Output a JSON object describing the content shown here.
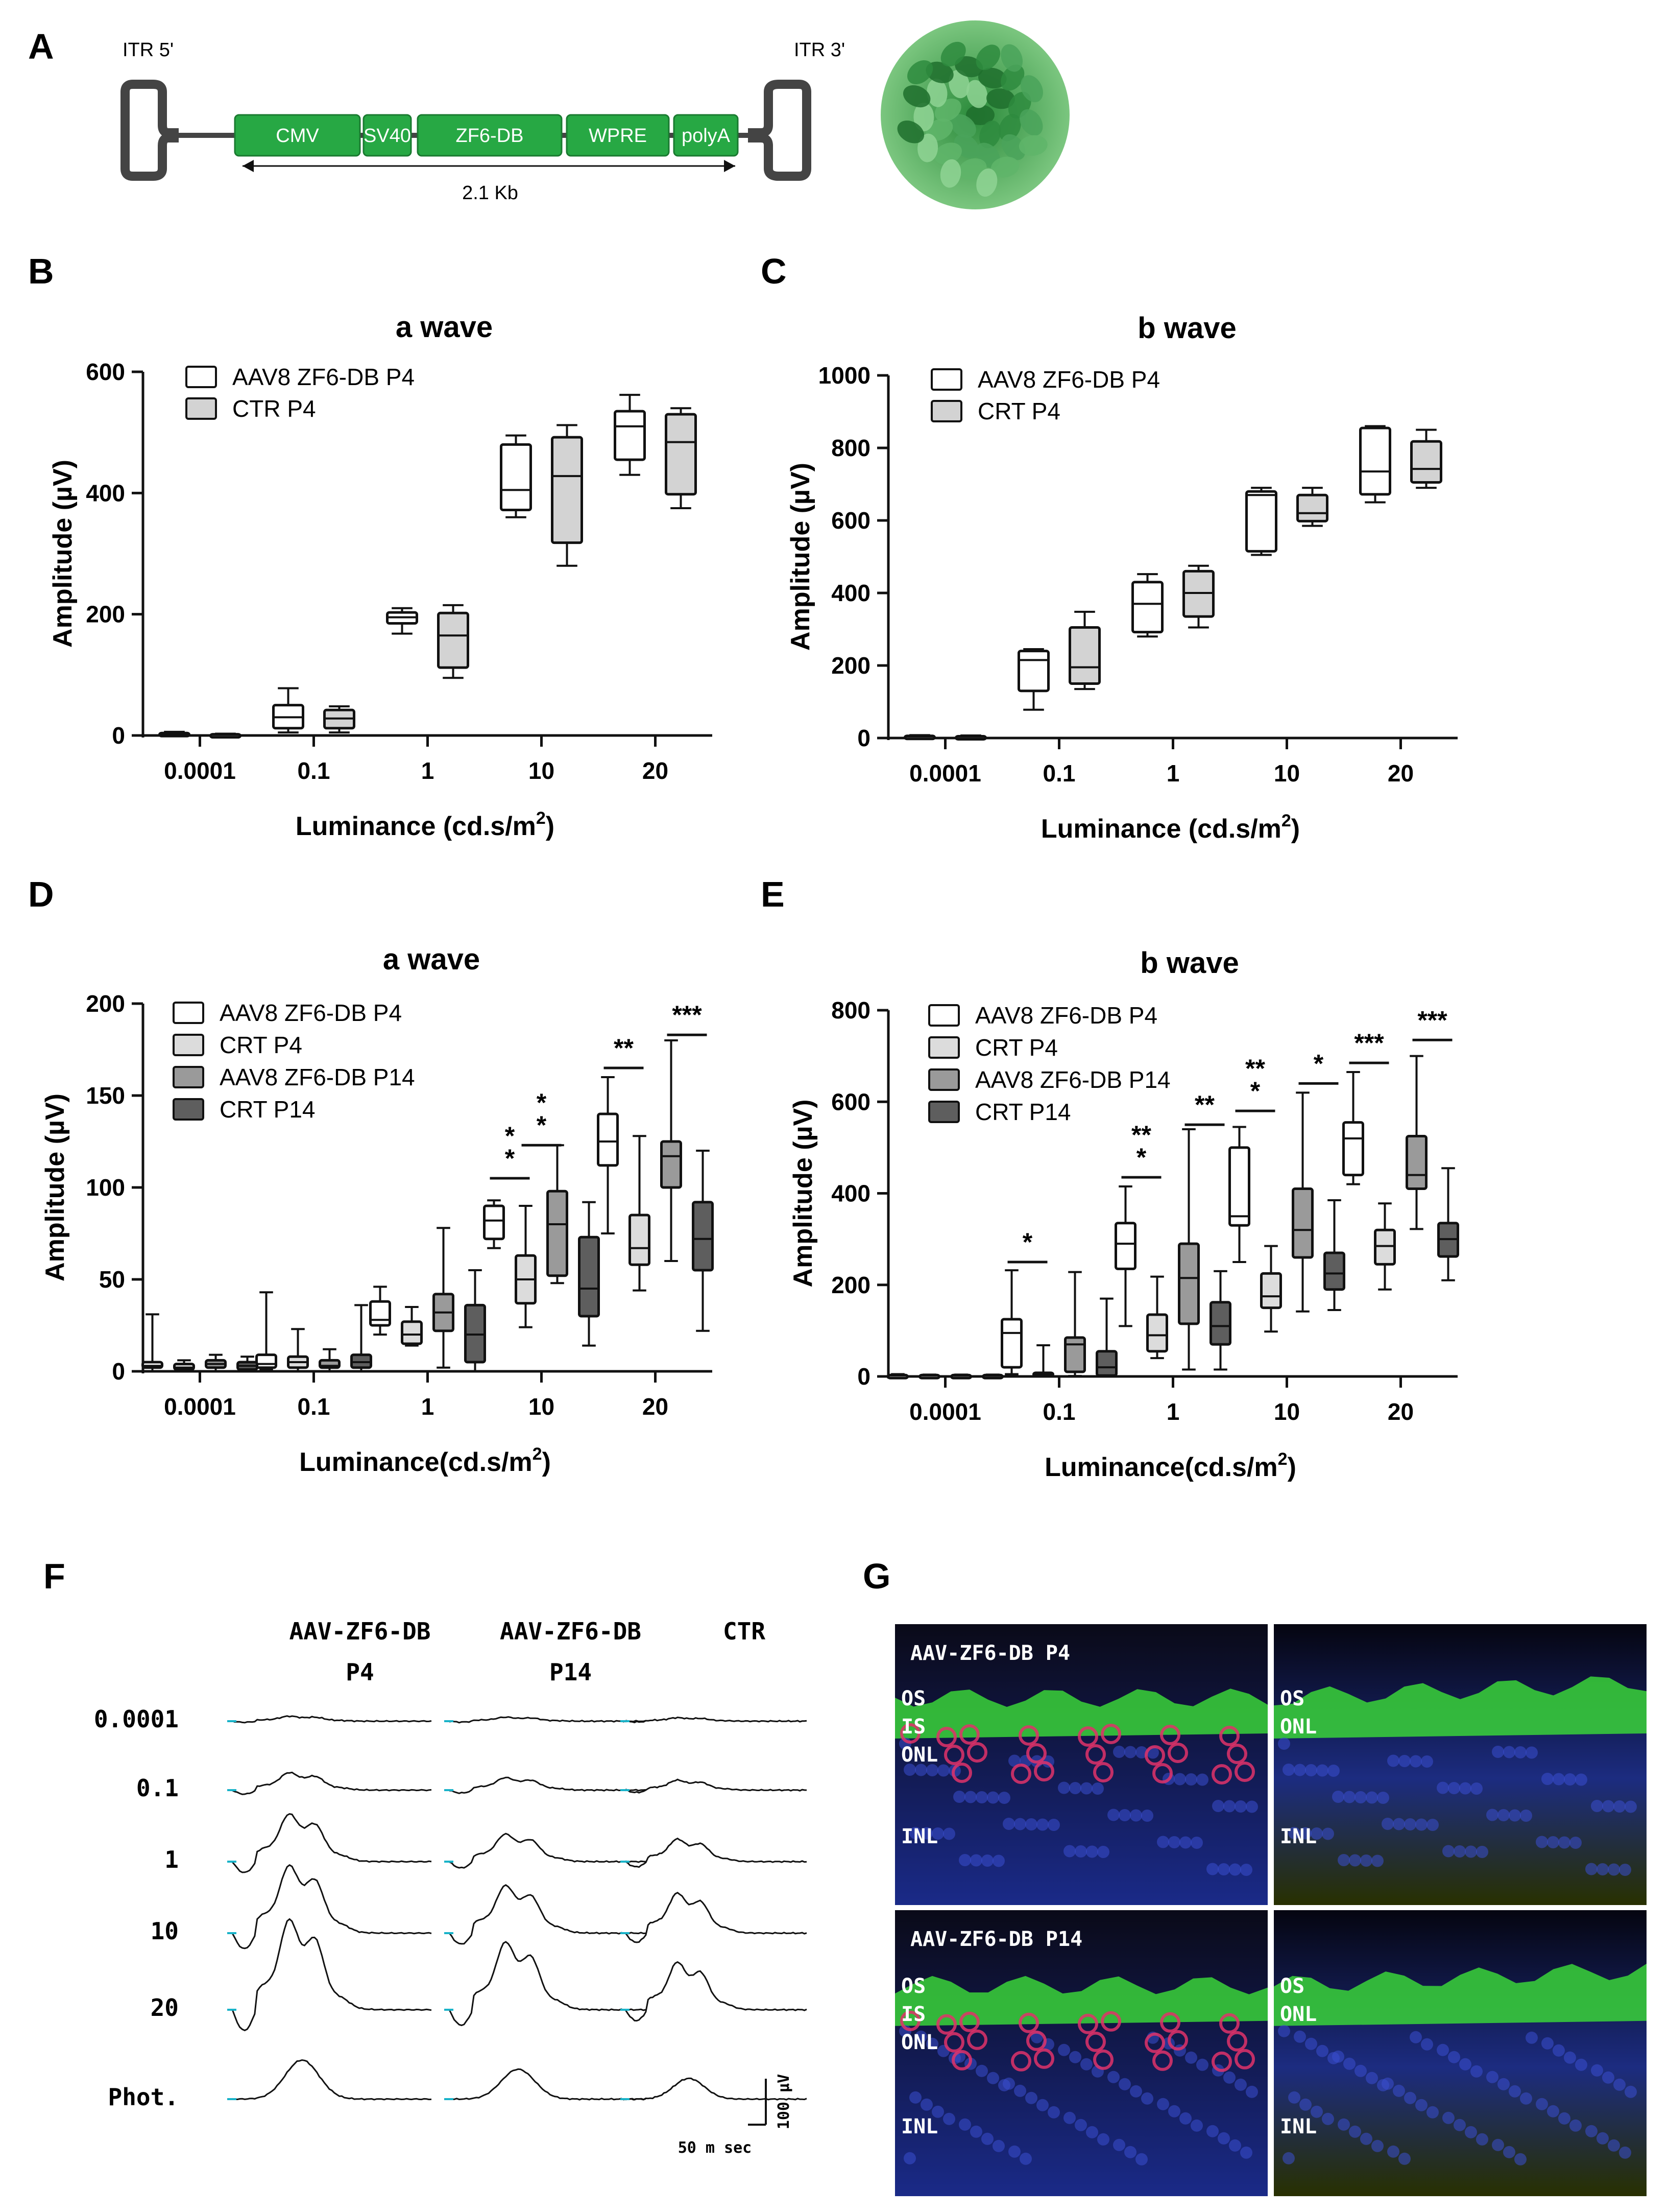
{
  "panel_labels": {
    "A": "A",
    "B": "B",
    "C": "C",
    "D": "D",
    "E": "E",
    "F": "F",
    "G": "G"
  },
  "construct": {
    "itr5": "ITR 5'",
    "itr3": "ITR 3'",
    "elements": [
      "CMV",
      "SV40",
      "ZF6-DB",
      "WPRE",
      "polyA"
    ],
    "size_label": "2.1 Kb",
    "colors": {
      "element": "#27a844",
      "element_stroke": "#1a7a30",
      "itr": "#444444"
    }
  },
  "chart_data": [
    {
      "id": "B",
      "type": "box",
      "title": "a wave",
      "xlabel": "Luminance (cd.s/m",
      "xlabel_sup": "2",
      "xlabel_end": ")",
      "ylabel": "Amplitude (µV)",
      "categories": [
        "0.0001",
        "0.1",
        "1",
        "10",
        "20"
      ],
      "ylim": [
        0,
        600
      ],
      "yticks": [
        "0",
        "200",
        "400",
        "600"
      ],
      "series": [
        {
          "name": "AAV8 ZF6-DB P4",
          "color": "#ffffff",
          "boxes": [
            {
              "min": 0,
              "q1": 1,
              "med": 2,
              "q3": 4,
              "max": 6
            },
            {
              "min": 5,
              "q1": 12,
              "med": 30,
              "q3": 50,
              "max": 78
            },
            {
              "min": 168,
              "q1": 185,
              "med": 195,
              "q3": 203,
              "max": 210
            },
            {
              "min": 360,
              "q1": 372,
              "med": 405,
              "q3": 480,
              "max": 495
            },
            {
              "min": 430,
              "q1": 455,
              "med": 510,
              "q3": 535,
              "max": 562
            }
          ]
        },
        {
          "name": "CTR P4",
          "color": "#d3d3d3",
          "boxes": [
            {
              "min": 0,
              "q1": 1,
              "med": 1,
              "q3": 2,
              "max": 3
            },
            {
              "min": 5,
              "q1": 12,
              "med": 28,
              "q3": 42,
              "max": 48
            },
            {
              "min": 95,
              "q1": 112,
              "med": 165,
              "q3": 202,
              "max": 215
            },
            {
              "min": 280,
              "q1": 318,
              "med": 428,
              "q3": 492,
              "max": 512
            },
            {
              "min": 375,
              "q1": 398,
              "med": 484,
              "q3": 530,
              "max": 540
            }
          ]
        }
      ],
      "significance": []
    },
    {
      "id": "C",
      "type": "box",
      "title": "b wave",
      "xlabel": "Luminance (cd.s/m",
      "xlabel_sup": "2",
      "xlabel_end": ")",
      "ylabel": "Amplitude (µV)",
      "categories": [
        "0.0001",
        "0.1",
        "1",
        "10",
        "20"
      ],
      "ylim": [
        0,
        1000
      ],
      "yticks": [
        "0",
        "200",
        "400",
        "600",
        "800",
        "1000"
      ],
      "series": [
        {
          "name": "AAV8 ZF6-DB P4",
          "color": "#ffffff",
          "boxes": [
            {
              "min": 0,
              "q1": 2,
              "med": 4,
              "q3": 6,
              "max": 8
            },
            {
              "min": 78,
              "q1": 130,
              "med": 215,
              "q3": 240,
              "max": 245
            },
            {
              "min": 280,
              "q1": 292,
              "med": 370,
              "q3": 430,
              "max": 452
            },
            {
              "min": 505,
              "q1": 515,
              "med": 670,
              "q3": 680,
              "max": 690
            },
            {
              "min": 650,
              "q1": 672,
              "med": 735,
              "q3": 855,
              "max": 860
            }
          ]
        },
        {
          "name": "CRT P4",
          "color": "#d3d3d3",
          "boxes": [
            {
              "min": 0,
              "q1": 1,
              "med": 3,
              "q3": 5,
              "max": 7
            },
            {
              "min": 135,
              "q1": 150,
              "med": 195,
              "q3": 305,
              "max": 348
            },
            {
              "min": 305,
              "q1": 335,
              "med": 400,
              "q3": 460,
              "max": 475
            },
            {
              "min": 585,
              "q1": 598,
              "med": 620,
              "q3": 670,
              "max": 690
            },
            {
              "min": 690,
              "q1": 705,
              "med": 742,
              "q3": 818,
              "max": 850
            }
          ]
        }
      ],
      "significance": []
    },
    {
      "id": "D",
      "type": "box",
      "title": "a wave",
      "xlabel": "Luminance(cd.s/m",
      "xlabel_sup": "2",
      "xlabel_end": ")",
      "ylabel": "Amplitude (µV)",
      "categories": [
        "0.0001",
        "0.1",
        "1",
        "10",
        "20"
      ],
      "ylim": [
        0,
        200
      ],
      "yticks": [
        "0",
        "50",
        "100",
        "150",
        "200"
      ],
      "series": [
        {
          "name": "AAV8 ZF6-DB P4",
          "color": "#ffffff",
          "boxes": [
            {
              "min": 0,
              "q1": 2,
              "med": 3,
              "q3": 5,
              "max": 31
            },
            {
              "min": 1,
              "q1": 2,
              "med": 4,
              "q3": 9,
              "max": 43
            },
            {
              "min": 20,
              "q1": 25,
              "med": 28,
              "q3": 38,
              "max": 46
            },
            {
              "min": 67,
              "q1": 72,
              "med": 82,
              "q3": 90,
              "max": 93
            },
            {
              "min": 75,
              "q1": 112,
              "med": 125,
              "q3": 140,
              "max": 160
            }
          ]
        },
        {
          "name": "CRT P4",
          "color": "#dcdcdc",
          "boxes": [
            {
              "min": 0,
              "q1": 1,
              "med": 2,
              "q3": 4,
              "max": 6
            },
            {
              "min": 0,
              "q1": 2,
              "med": 5,
              "q3": 8,
              "max": 23
            },
            {
              "min": 14,
              "q1": 15,
              "med": 20,
              "q3": 27,
              "max": 35
            },
            {
              "min": 24,
              "q1": 37,
              "med": 50,
              "q3": 63,
              "max": 90
            },
            {
              "min": 44,
              "q1": 58,
              "med": 67,
              "q3": 85,
              "max": 128
            }
          ]
        },
        {
          "name": "AAV8 ZF6-DB P14",
          "color": "#9a9a9a",
          "boxes": [
            {
              "min": 0,
              "q1": 2,
              "med": 4,
              "q3": 6,
              "max": 9
            },
            {
              "min": 0,
              "q1": 2,
              "med": 3,
              "q3": 6,
              "max": 12
            },
            {
              "min": 2,
              "q1": 22,
              "med": 32,
              "q3": 42,
              "max": 78
            },
            {
              "min": 48,
              "q1": 52,
              "med": 80,
              "q3": 98,
              "max": 123
            },
            {
              "min": 60,
              "q1": 100,
              "med": 117,
              "q3": 125,
              "max": 180
            }
          ]
        },
        {
          "name": "CRT P14",
          "color": "#5e5e5e",
          "boxes": [
            {
              "min": 0,
              "q1": 1,
              "med": 3,
              "q3": 5,
              "max": 8
            },
            {
              "min": 0,
              "q1": 2,
              "med": 5,
              "q3": 9,
              "max": 36
            },
            {
              "min": 0,
              "q1": 5,
              "med": 20,
              "q3": 36,
              "max": 55
            },
            {
              "min": 14,
              "q1": 30,
              "med": 45,
              "q3": 73,
              "max": 92
            },
            {
              "min": 22,
              "q1": 55,
              "med": 72,
              "q3": 92,
              "max": 120
            }
          ]
        }
      ],
      "significance": [
        {
          "group": 3,
          "from": 0,
          "to": 1,
          "y": 105,
          "stars": [
            "*",
            "*"
          ]
        },
        {
          "group": 3,
          "from": 1,
          "to": 2,
          "y": 123,
          "stars": [
            "*",
            "*"
          ]
        },
        {
          "group": 4,
          "from": 0,
          "to": 1,
          "y": 165,
          "stars": [
            "**"
          ]
        },
        {
          "group": 4,
          "from": 2,
          "to": 3,
          "y": 183,
          "stars": [
            "***"
          ]
        }
      ]
    },
    {
      "id": "E",
      "type": "box",
      "title": "b wave",
      "xlabel": "Luminance(cd.s/m",
      "xlabel_sup": "2",
      "xlabel_end": ")",
      "ylabel": "Amplitude (µV)",
      "categories": [
        "0.0001",
        "0.1",
        "1",
        "10",
        "20"
      ],
      "ylim": [
        0,
        800
      ],
      "yticks": [
        "0",
        "200",
        "400",
        "600",
        "800"
      ],
      "series": [
        {
          "name": "AAV8 ZF6-DB P4",
          "color": "#ffffff",
          "boxes": [
            {
              "min": 0,
              "q1": 1,
              "med": 2,
              "q3": 3,
              "max": 5
            },
            {
              "min": 5,
              "q1": 20,
              "med": 95,
              "q3": 125,
              "max": 232
            },
            {
              "min": 110,
              "q1": 235,
              "med": 290,
              "q3": 335,
              "max": 415
            },
            {
              "min": 250,
              "q1": 330,
              "med": 350,
              "q3": 500,
              "max": 545
            },
            {
              "min": 420,
              "q1": 440,
              "med": 520,
              "q3": 555,
              "max": 665
            }
          ]
        },
        {
          "name": "CRT P4",
          "color": "#dcdcdc",
          "boxes": [
            {
              "min": 0,
              "q1": 1,
              "med": 2,
              "q3": 3,
              "max": 4
            },
            {
              "min": 2,
              "q1": 4,
              "med": 6,
              "q3": 8,
              "max": 68
            },
            {
              "min": 40,
              "q1": 55,
              "med": 90,
              "q3": 135,
              "max": 218
            },
            {
              "min": 98,
              "q1": 150,
              "med": 175,
              "q3": 225,
              "max": 285
            },
            {
              "min": 190,
              "q1": 245,
              "med": 285,
              "q3": 320,
              "max": 378
            }
          ]
        },
        {
          "name": "AAV8 ZF6-DB P14",
          "color": "#9a9a9a",
          "boxes": [
            {
              "min": 0,
              "q1": 1,
              "med": 2,
              "q3": 3,
              "max": 4
            },
            {
              "min": 1,
              "q1": 10,
              "med": 70,
              "q3": 85,
              "max": 228
            },
            {
              "min": 15,
              "q1": 115,
              "med": 215,
              "q3": 290,
              "max": 540
            },
            {
              "min": 142,
              "q1": 260,
              "med": 320,
              "q3": 410,
              "max": 620
            },
            {
              "min": 322,
              "q1": 410,
              "med": 440,
              "q3": 525,
              "max": 700
            }
          ]
        },
        {
          "name": "CRT P14",
          "color": "#5e5e5e",
          "boxes": [
            {
              "min": 0,
              "q1": 1,
              "med": 2,
              "q3": 3,
              "max": 4
            },
            {
              "min": 0,
              "q1": 2,
              "med": 20,
              "q3": 55,
              "max": 170
            },
            {
              "min": 15,
              "q1": 70,
              "med": 110,
              "q3": 162,
              "max": 230
            },
            {
              "min": 145,
              "q1": 190,
              "med": 225,
              "q3": 270,
              "max": 385
            },
            {
              "min": 210,
              "q1": 262,
              "med": 300,
              "q3": 335,
              "max": 455
            }
          ]
        }
      ],
      "significance": [
        {
          "group": 1,
          "from": 0,
          "to": 1,
          "y": 250,
          "stars": [
            "*"
          ]
        },
        {
          "group": 2,
          "from": 0,
          "to": 1,
          "y": 435,
          "stars": [
            "**",
            "*"
          ]
        },
        {
          "group": 2,
          "from": 2,
          "to": 3,
          "y": 550,
          "stars": [
            "**"
          ]
        },
        {
          "group": 3,
          "from": 0,
          "to": 1,
          "y": 580,
          "stars": [
            "**",
            "*"
          ]
        },
        {
          "group": 3,
          "from": 2,
          "to": 3,
          "y": 640,
          "stars": [
            "*"
          ]
        },
        {
          "group": 4,
          "from": 0,
          "to": 1,
          "y": 685,
          "stars": [
            "***"
          ]
        },
        {
          "group": 4,
          "from": 2,
          "to": 3,
          "y": 735,
          "stars": [
            "***"
          ]
        }
      ]
    }
  ],
  "traces": {
    "columns": [
      "AAV-ZF6-DB\nP4",
      "AAV-ZF6-DB\nP14",
      "CTR"
    ],
    "rows": [
      "0.0001",
      "0.1",
      "1",
      "10",
      "20",
      "Phot."
    ],
    "scale_v": "100 µV",
    "scale_t": "50 m sec",
    "amplitudes": [
      [
        0.1,
        0.08,
        0.07
      ],
      [
        0.35,
        0.25,
        0.2
      ],
      [
        0.95,
        0.55,
        0.45
      ],
      [
        1.35,
        0.95,
        0.8
      ],
      [
        1.8,
        1.35,
        0.95
      ],
      [
        0.85,
        0.65,
        0.45
      ]
    ]
  },
  "micrographs": {
    "tiles": [
      {
        "title": "AAV-ZF6-DB P4",
        "layers": [
          "OS",
          "IS",
          "ONL",
          "INL"
        ],
        "rod_red": true
      },
      {
        "title": "",
        "layers": [
          "OS",
          "ONL",
          "INL"
        ],
        "rod_red": false
      },
      {
        "title": "AAV-ZF6-DB P14",
        "layers": [
          "OS",
          "IS",
          "ONL",
          "INL"
        ],
        "rod_red": true
      },
      {
        "title": "",
        "layers": [
          "OS",
          "ONL",
          "INL"
        ],
        "rod_red": false
      }
    ]
  }
}
